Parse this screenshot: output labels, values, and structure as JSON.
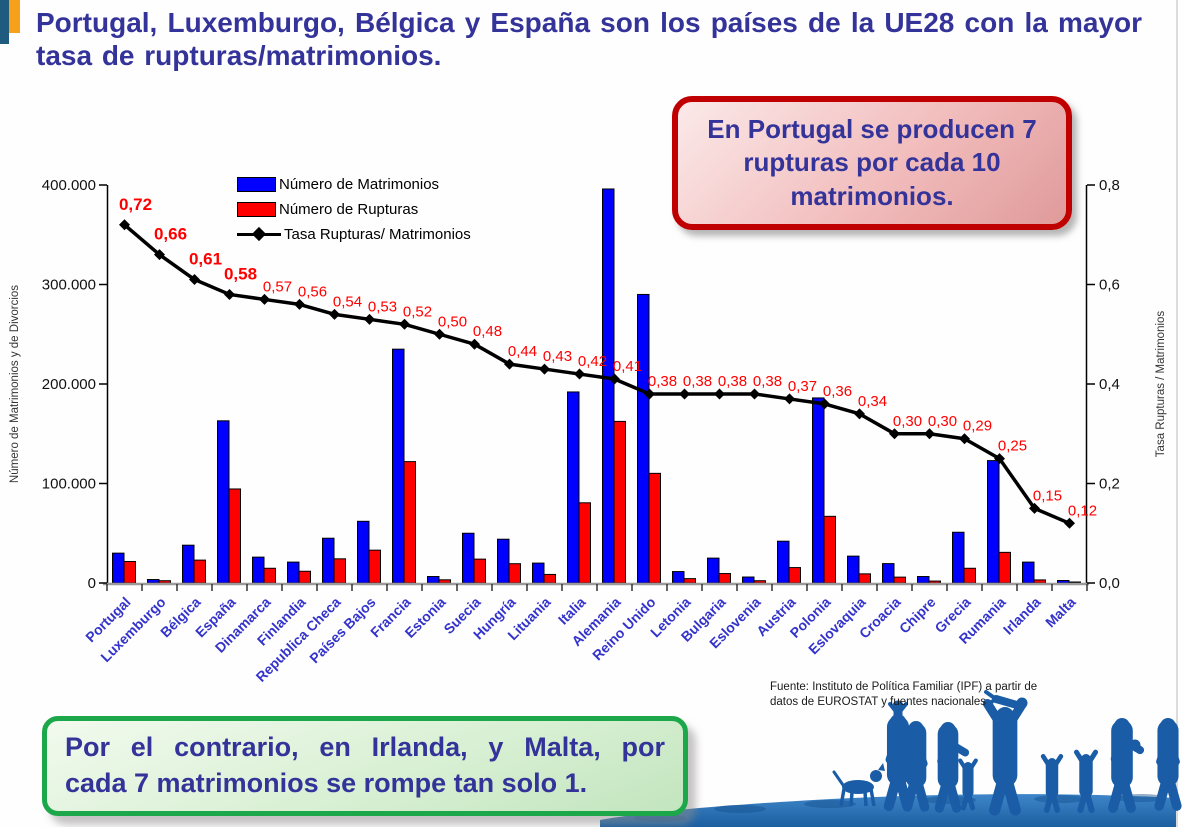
{
  "page": {
    "title": "Portugal, Luxemburgo, Bélgica y España son los países de la UE28 con la mayor tasa de rupturas/matrimonios."
  },
  "callouts": {
    "portugal": "En Portugal se producen 7 rupturas por cada 10 matrimonios.",
    "irlanda_malta_line1": "Por el contrario, en Irlanda, y Malta, por",
    "irlanda_malta_line2": "cada 7 matrimonios se rompe tan solo 1."
  },
  "source": {
    "line1": "Fuente: Instituto de Política Familiar (IPF) a partir de",
    "line2": "datos de EUROSTAT y fuentes nacionales"
  },
  "colors": {
    "bar_marriages": "#0000FF",
    "bar_ruptures": "#FF0000",
    "rate_line": "#000000",
    "rate_label": "#FF0000",
    "title_text": "#333399",
    "country_label": "#3333CC",
    "callout_red_border": "#C00000",
    "callout_green_border": "#1DA74B",
    "silhouette_blue": "#1A5DA6"
  },
  "chart_data": {
    "type": "bar",
    "subtype": "grouped bars with secondary-axis line",
    "categories": [
      "Portugal",
      "Luxemburgo",
      "Bélgica",
      "España",
      "Dinamarca",
      "Finlandia",
      "Republica Checa",
      "Países Bajos",
      "Francia",
      "Estonia",
      "Suecia",
      "Hungría",
      "Lituania",
      "Italia",
      "Alemania",
      "Reino Unido",
      "Letonia",
      "Bulgaria",
      "Eslovenia",
      "Austria",
      "Polonia",
      "Eslovaquia",
      "Croacia",
      "Chipre",
      "Grecia",
      "Rumania",
      "Irlanda",
      "Malta"
    ],
    "series": [
      {
        "name": "Número de Matrimonios",
        "type": "bar",
        "color": "#0000FF",
        "values": [
          30000,
          3500,
          38000,
          163000,
          26000,
          21000,
          45000,
          62000,
          235000,
          6500,
          50000,
          44000,
          20000,
          192000,
          396000,
          290000,
          11500,
          25000,
          6000,
          42000,
          186000,
          27000,
          19500,
          6500,
          51000,
          123000,
          21000,
          2500
        ]
      },
      {
        "name": "Número de Rupturas",
        "type": "bar",
        "color": "#FF0000",
        "values": [
          21600,
          2300,
          23000,
          94500,
          14800,
          11800,
          24300,
          33000,
          122000,
          3200,
          24000,
          19400,
          8600,
          80600,
          162400,
          110200,
          4400,
          9500,
          2300,
          15500,
          67000,
          9200,
          5900,
          1950,
          14800,
          30800,
          3100,
          300
        ]
      },
      {
        "name": "Tasa Rupturas/ Matrimonios",
        "type": "line",
        "axis": "right",
        "color": "#000000",
        "values": [
          0.72,
          0.66,
          0.61,
          0.58,
          0.57,
          0.56,
          0.54,
          0.53,
          0.52,
          0.5,
          0.48,
          0.44,
          0.43,
          0.42,
          0.41,
          0.38,
          0.38,
          0.38,
          0.38,
          0.37,
          0.36,
          0.34,
          0.3,
          0.3,
          0.29,
          0.25,
          0.15,
          0.12
        ],
        "labels": [
          "0,72",
          "0,66",
          "0,61",
          "0,58",
          "0,57",
          "0,56",
          "0,54",
          "0,53",
          "0,52",
          "0,50",
          "0,48",
          "0,44",
          "0,43",
          "0,42",
          "0,41",
          "0,38",
          "0,38",
          "0,38",
          "0,38",
          "0,37",
          "0,36",
          "0,34",
          "0,30",
          "0,30",
          "0,29",
          "0,25",
          "0,15",
          "0,12"
        ],
        "bold_label_count": 4
      }
    ],
    "left_axis": {
      "title": "Número de Matrimonios y de Divorcios",
      "ticks": [
        "0",
        "100.000",
        "200.000",
        "300.000",
        "400.000"
      ],
      "min": 0,
      "max": 400000
    },
    "right_axis": {
      "title": "Tasa Rupturas / Matrimonios",
      "ticks": [
        "0,0",
        "0,2",
        "0,4",
        "0,6",
        "0,8"
      ],
      "min": 0,
      "max": 0.8
    },
    "grid": false,
    "legend_position": "inside-top-left"
  }
}
